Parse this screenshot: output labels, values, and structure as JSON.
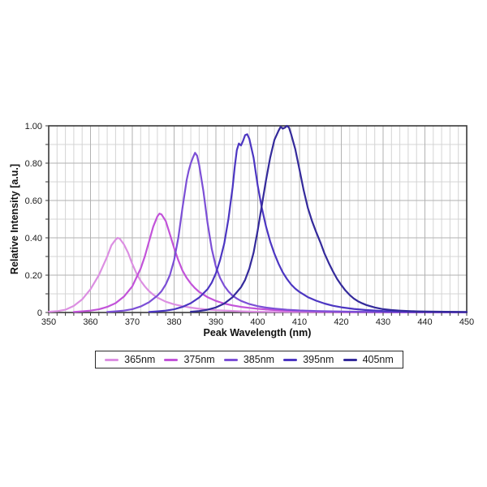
{
  "chart_data": {
    "type": "line",
    "title": "",
    "xlabel": "Peak Wavelength (nm)",
    "ylabel": "Relative Intensity [a.u.]",
    "xlim": [
      350,
      450
    ],
    "ylim": [
      0,
      1.0
    ],
    "x_tick_values": [
      350,
      360,
      370,
      380,
      390,
      400,
      410,
      420,
      430,
      440,
      450
    ],
    "x_tick_labels": [
      "350",
      "360",
      "370",
      "380",
      "390",
      "400",
      "410",
      "420",
      "430",
      "440",
      "450"
    ],
    "y_tick_values": [
      0,
      0.2,
      0.4,
      0.6,
      0.8,
      1.0
    ],
    "y_tick_labels": [
      "0",
      "0.20",
      "0.40",
      "0.60",
      "0.80",
      "1.00"
    ],
    "x_minor_step": 2,
    "y_minor_step": 0.1,
    "grid": "on",
    "legend_position": "bottom",
    "colors": {
      "grid_minor": "#d4d4d4",
      "grid_major": "#b2b2b2",
      "axis_frame": "#3a3a3a",
      "tick_text": "#1a1a1a"
    },
    "series": [
      {
        "name": "365nm",
        "color": "#dc8fe2",
        "peak_nm": 366.5,
        "peak_intensity": 0.4,
        "points": [
          [
            350,
            0.004
          ],
          [
            352,
            0.007
          ],
          [
            354,
            0.015
          ],
          [
            356,
            0.035
          ],
          [
            358,
            0.07
          ],
          [
            360,
            0.125
          ],
          [
            362,
            0.2
          ],
          [
            364,
            0.3
          ],
          [
            365,
            0.36
          ],
          [
            366,
            0.39
          ],
          [
            366.5,
            0.4
          ],
          [
            367,
            0.395
          ],
          [
            368,
            0.365
          ],
          [
            369,
            0.32
          ],
          [
            370,
            0.26
          ],
          [
            371,
            0.21
          ],
          [
            372,
            0.17
          ],
          [
            373,
            0.14
          ],
          [
            374,
            0.115
          ],
          [
            375,
            0.095
          ],
          [
            376,
            0.08
          ],
          [
            378,
            0.058
          ],
          [
            380,
            0.044
          ],
          [
            382,
            0.034
          ],
          [
            384,
            0.026
          ],
          [
            386,
            0.02
          ],
          [
            388,
            0.016
          ],
          [
            390,
            0.012
          ],
          [
            393,
            0.009
          ],
          [
            396,
            0.006
          ],
          [
            400,
            0.004
          ],
          [
            405,
            0.003
          ],
          [
            412,
            0.002
          ],
          [
            422,
            0.001
          ],
          [
            450,
            0.001
          ]
        ]
      },
      {
        "name": "375nm",
        "color": "#c253d9",
        "peak_nm": 376.5,
        "peak_intensity": 0.53,
        "points": [
          [
            356,
            0.003
          ],
          [
            358,
            0.006
          ],
          [
            360,
            0.01
          ],
          [
            362,
            0.017
          ],
          [
            364,
            0.03
          ],
          [
            366,
            0.05
          ],
          [
            368,
            0.085
          ],
          [
            370,
            0.14
          ],
          [
            372,
            0.235
          ],
          [
            373,
            0.3
          ],
          [
            374,
            0.38
          ],
          [
            375,
            0.46
          ],
          [
            376,
            0.515
          ],
          [
            376.5,
            0.53
          ],
          [
            377,
            0.525
          ],
          [
            378,
            0.49
          ],
          [
            379,
            0.42
          ],
          [
            380,
            0.345
          ],
          [
            381,
            0.28
          ],
          [
            382,
            0.225
          ],
          [
            383,
            0.185
          ],
          [
            384,
            0.155
          ],
          [
            385,
            0.13
          ],
          [
            386,
            0.11
          ],
          [
            388,
            0.082
          ],
          [
            390,
            0.062
          ],
          [
            392,
            0.048
          ],
          [
            394,
            0.038
          ],
          [
            396,
            0.03
          ],
          [
            398,
            0.025
          ],
          [
            400,
            0.02
          ],
          [
            403,
            0.015
          ],
          [
            406,
            0.011
          ],
          [
            410,
            0.008
          ],
          [
            415,
            0.005
          ],
          [
            421,
            0.003
          ],
          [
            428,
            0.002
          ],
          [
            436,
            0.001
          ],
          [
            450,
            0.001
          ]
        ]
      },
      {
        "name": "385nm",
        "color": "#7c4fd6",
        "peak_nm": 385,
        "peak_intensity": 0.855,
        "points": [
          [
            364,
            0.003
          ],
          [
            366,
            0.006
          ],
          [
            368,
            0.01
          ],
          [
            370,
            0.018
          ],
          [
            372,
            0.032
          ],
          [
            374,
            0.055
          ],
          [
            376,
            0.09
          ],
          [
            377,
            0.115
          ],
          [
            378,
            0.15
          ],
          [
            379,
            0.2
          ],
          [
            380,
            0.28
          ],
          [
            381,
            0.4
          ],
          [
            382,
            0.56
          ],
          [
            383,
            0.71
          ],
          [
            383.5,
            0.76
          ],
          [
            384,
            0.8
          ],
          [
            384.5,
            0.83
          ],
          [
            385,
            0.855
          ],
          [
            385.5,
            0.84
          ],
          [
            386,
            0.79
          ],
          [
            387,
            0.65
          ],
          [
            388,
            0.48
          ],
          [
            389,
            0.34
          ],
          [
            390,
            0.245
          ],
          [
            391,
            0.185
          ],
          [
            392,
            0.143
          ],
          [
            393,
            0.113
          ],
          [
            394,
            0.09
          ],
          [
            395,
            0.075
          ],
          [
            396,
            0.062
          ],
          [
            398,
            0.045
          ],
          [
            400,
            0.034
          ],
          [
            402,
            0.026
          ],
          [
            404,
            0.021
          ],
          [
            407,
            0.015
          ],
          [
            410,
            0.011
          ],
          [
            414,
            0.008
          ],
          [
            418,
            0.006
          ],
          [
            424,
            0.004
          ],
          [
            430,
            0.003
          ],
          [
            438,
            0.002
          ],
          [
            450,
            0.001
          ]
        ]
      },
      {
        "name": "395nm",
        "color": "#4c36c2",
        "peak_nm": 397,
        "peak_intensity": 0.955,
        "points": [
          [
            374,
            0.003
          ],
          [
            376,
            0.006
          ],
          [
            378,
            0.01
          ],
          [
            380,
            0.017
          ],
          [
            382,
            0.03
          ],
          [
            384,
            0.05
          ],
          [
            386,
            0.08
          ],
          [
            388,
            0.125
          ],
          [
            389,
            0.16
          ],
          [
            390,
            0.21
          ],
          [
            391,
            0.28
          ],
          [
            392,
            0.37
          ],
          [
            393,
            0.5
          ],
          [
            394,
            0.67
          ],
          [
            394.5,
            0.78
          ],
          [
            395,
            0.87
          ],
          [
            395.5,
            0.905
          ],
          [
            396,
            0.895
          ],
          [
            396.5,
            0.92
          ],
          [
            397,
            0.95
          ],
          [
            397.5,
            0.955
          ],
          [
            398,
            0.93
          ],
          [
            399,
            0.83
          ],
          [
            400,
            0.68
          ],
          [
            401,
            0.56
          ],
          [
            402,
            0.46
          ],
          [
            403,
            0.38
          ],
          [
            404,
            0.315
          ],
          [
            405,
            0.26
          ],
          [
            406,
            0.215
          ],
          [
            407,
            0.18
          ],
          [
            408,
            0.15
          ],
          [
            409,
            0.128
          ],
          [
            410,
            0.11
          ],
          [
            412,
            0.082
          ],
          [
            414,
            0.063
          ],
          [
            416,
            0.048
          ],
          [
            418,
            0.036
          ],
          [
            420,
            0.028
          ],
          [
            423,
            0.019
          ],
          [
            426,
            0.013
          ],
          [
            430,
            0.008
          ],
          [
            434,
            0.006
          ],
          [
            438,
            0.004
          ],
          [
            443,
            0.003
          ],
          [
            450,
            0.002
          ]
        ]
      },
      {
        "name": "405nm",
        "color": "#342a9b",
        "peak_nm": 407,
        "peak_intensity": 1.0,
        "points": [
          [
            384,
            0.004
          ],
          [
            386,
            0.008
          ],
          [
            388,
            0.015
          ],
          [
            390,
            0.027
          ],
          [
            392,
            0.048
          ],
          [
            394,
            0.082
          ],
          [
            396,
            0.135
          ],
          [
            397,
            0.175
          ],
          [
            398,
            0.235
          ],
          [
            399,
            0.32
          ],
          [
            400,
            0.44
          ],
          [
            401,
            0.575
          ],
          [
            402,
            0.71
          ],
          [
            403,
            0.83
          ],
          [
            404,
            0.925
          ],
          [
            405,
            0.975
          ],
          [
            405.5,
            0.995
          ],
          [
            406,
            0.985
          ],
          [
            406.5,
            0.99
          ],
          [
            407,
            1.0
          ],
          [
            407.5,
            0.99
          ],
          [
            408,
            0.955
          ],
          [
            409,
            0.875
          ],
          [
            410,
            0.765
          ],
          [
            411,
            0.655
          ],
          [
            412,
            0.56
          ],
          [
            413,
            0.49
          ],
          [
            414,
            0.43
          ],
          [
            415,
            0.375
          ],
          [
            416,
            0.315
          ],
          [
            417,
            0.265
          ],
          [
            418,
            0.22
          ],
          [
            419,
            0.18
          ],
          [
            420,
            0.147
          ],
          [
            421,
            0.118
          ],
          [
            422,
            0.094
          ],
          [
            423,
            0.075
          ],
          [
            424,
            0.06
          ],
          [
            425,
            0.049
          ],
          [
            426,
            0.04
          ],
          [
            428,
            0.027
          ],
          [
            430,
            0.018
          ],
          [
            432,
            0.013
          ],
          [
            434,
            0.01
          ],
          [
            436,
            0.008
          ],
          [
            438,
            0.006
          ],
          [
            441,
            0.005
          ],
          [
            445,
            0.004
          ],
          [
            450,
            0.003
          ]
        ]
      }
    ]
  }
}
